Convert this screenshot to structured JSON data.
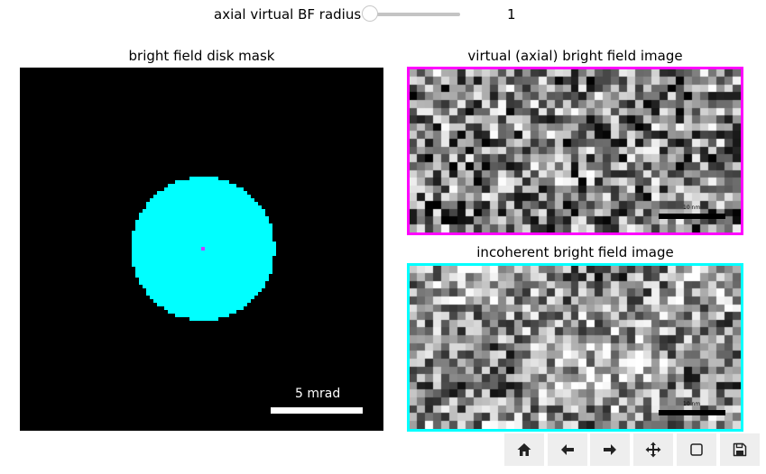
{
  "slider": {
    "label": "axial virtual BF radius",
    "value": "1",
    "fraction": 0.0
  },
  "panels": {
    "mask": {
      "title": "bright field disk mask",
      "scalebar_label": "5 mrad",
      "disk_color": "#00ffff",
      "center_marker_color": "#c040ff",
      "background_color": "#000000"
    },
    "virtual_bf": {
      "title": "virtual (axial) bright field image",
      "border_color": "#ff00ff",
      "scalebar_label": "10 nm"
    },
    "incoherent_bf": {
      "title": "incoherent bright field image",
      "border_color": "#00ffff",
      "scalebar_label": "10 nm"
    }
  },
  "toolbar": {
    "buttons": [
      {
        "name": "home-button",
        "icon": "home-icon"
      },
      {
        "name": "back-button",
        "icon": "arrow-left-icon"
      },
      {
        "name": "forward-button",
        "icon": "arrow-right-icon"
      },
      {
        "name": "pan-button",
        "icon": "move-icon"
      },
      {
        "name": "zoom-button",
        "icon": "zoom-rect-icon"
      },
      {
        "name": "save-button",
        "icon": "save-icon"
      }
    ]
  }
}
